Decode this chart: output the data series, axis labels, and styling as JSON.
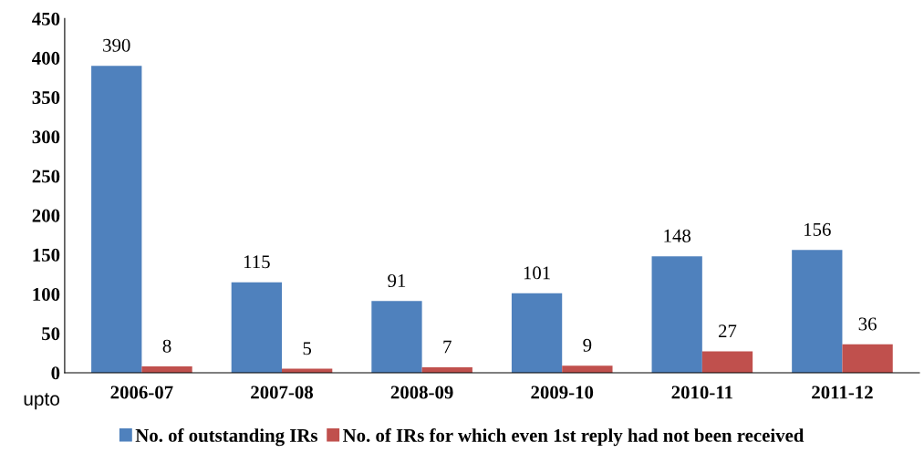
{
  "chart_data": {
    "type": "bar",
    "categories": [
      "2006-07",
      "2007-08",
      "2008-09",
      "2009-10",
      "2010-11",
      "2011-12"
    ],
    "series": [
      {
        "name": "No. of outstanding IRs",
        "color": "#4f81bd",
        "values": [
          390,
          115,
          91,
          101,
          148,
          156
        ]
      },
      {
        "name": "No. of IRs for which even 1st reply had not been received",
        "color": "#c0504d",
        "values": [
          8,
          5,
          7,
          9,
          27,
          36
        ]
      }
    ],
    "ylim": [
      0,
      450
    ],
    "yticks": [
      0,
      50,
      100,
      150,
      200,
      250,
      300,
      350,
      400,
      450
    ],
    "data_labels": true,
    "grid": false,
    "legend": "bottom",
    "annotations": [
      "upto"
    ]
  }
}
